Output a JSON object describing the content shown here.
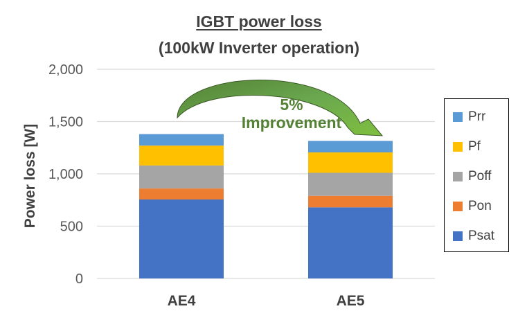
{
  "chart_data": {
    "type": "bar",
    "stacked": true,
    "title_line1": "IGBT power loss",
    "title_line2": "(100kW Inverter operation)",
    "xlabel": "",
    "ylabel": "Power loss [W]",
    "ylim": [
      0,
      2000
    ],
    "yticks": [
      0,
      500,
      1000,
      1500,
      2000
    ],
    "ytick_labels": [
      "0",
      "500",
      "1,000",
      "1,500",
      "2,000"
    ],
    "grid": true,
    "legend_position": "right",
    "categories": [
      "AE4",
      "AE5"
    ],
    "series": [
      {
        "name": "Psat",
        "color": "#4472C4",
        "values": [
          755,
          680
        ]
      },
      {
        "name": "Pon",
        "color": "#ED7D31",
        "values": [
          105,
          110
        ]
      },
      {
        "name": "Poff",
        "color": "#A5A5A5",
        "values": [
          220,
          220
        ]
      },
      {
        "name": "Pf",
        "color": "#FFC000",
        "values": [
          190,
          195
        ]
      },
      {
        "name": "Prr",
        "color": "#5B9BD5",
        "values": [
          110,
          110
        ]
      }
    ],
    "annotation": {
      "line1": "5%",
      "line2": "Improvement",
      "color": "#548235"
    }
  }
}
